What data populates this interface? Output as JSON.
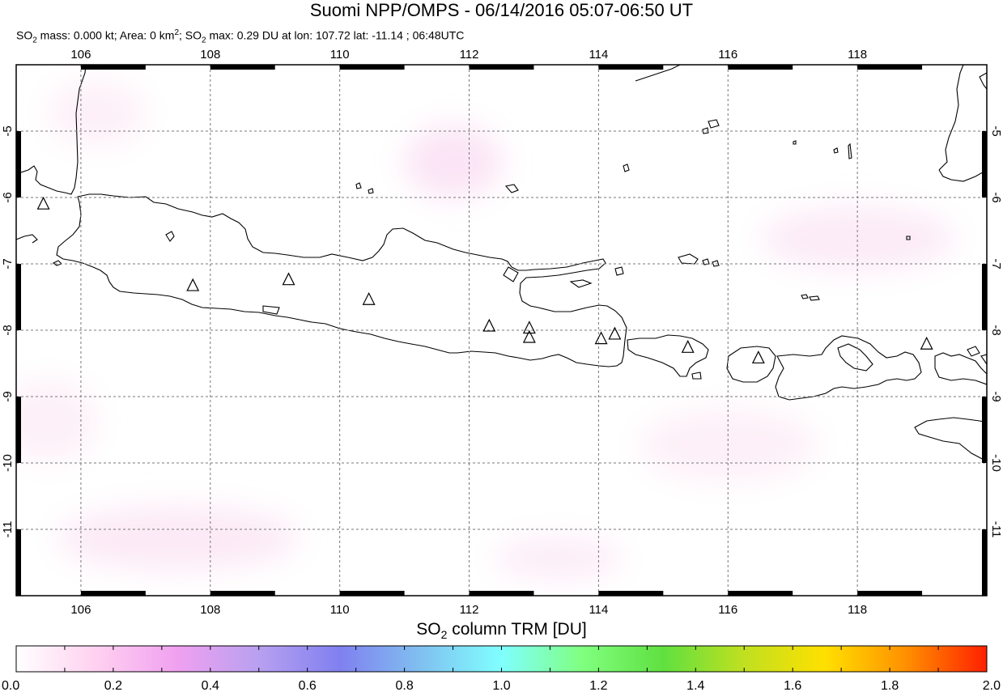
{
  "header": {
    "title": "Suomi NPP/OMPS - 06/14/2016 05:07-06:50 UT",
    "subtitle": {
      "so2_prefix": "SO",
      "mass_label": " mass: 0.000 kt; Area: 0 km",
      "area_suffix": "; SO",
      "max_text": " max: 0.29 DU at lon: 107.72 lat: -11.14 ; 06:48UTC",
      "sub_2": "2",
      "sup_2": "2"
    }
  },
  "map": {
    "lon_ticks": [
      "106",
      "108",
      "110",
      "112",
      "114",
      "116",
      "118"
    ],
    "lat_ticks": [
      "-5",
      "-6",
      "-7",
      "-8",
      "-9",
      "-10",
      "-11"
    ],
    "lon_range": [
      105,
      120
    ],
    "lat_range": [
      -12,
      -4
    ],
    "volcano_icon": "triangle-icon",
    "volcanoes": [
      {
        "lon": 105.42,
        "lat": -6.1
      },
      {
        "lon": 107.73,
        "lat": -7.33
      },
      {
        "lon": 109.21,
        "lat": -7.24
      },
      {
        "lon": 110.45,
        "lat": -7.54
      },
      {
        "lon": 112.31,
        "lat": -7.94
      },
      {
        "lon": 112.93,
        "lat": -7.97
      },
      {
        "lon": 112.93,
        "lat": -8.11
      },
      {
        "lon": 114.04,
        "lat": -8.13
      },
      {
        "lon": 114.25,
        "lat": -8.06
      },
      {
        "lon": 115.38,
        "lat": -8.26
      },
      {
        "lon": 116.47,
        "lat": -8.42
      },
      {
        "lon": 119.07,
        "lat": -8.21
      }
    ]
  },
  "colorbar": {
    "title_prefix": "SO",
    "title_sub": "2",
    "title_suffix": " column TRM [DU]",
    "tick_labels": [
      "0.0",
      "0.2",
      "0.4",
      "0.6",
      "0.8",
      "1.0",
      "1.2",
      "1.4",
      "1.6",
      "1.8",
      "2.0"
    ],
    "colors": [
      "#ffffff",
      "#ffd0f0",
      "#f0a0f0",
      "#b8a0f0",
      "#8080f0",
      "#80c0f0",
      "#80ffff",
      "#80ff80",
      "#60e040",
      "#c0e020",
      "#ffe000",
      "#ff9000",
      "#ff2000"
    ]
  }
}
